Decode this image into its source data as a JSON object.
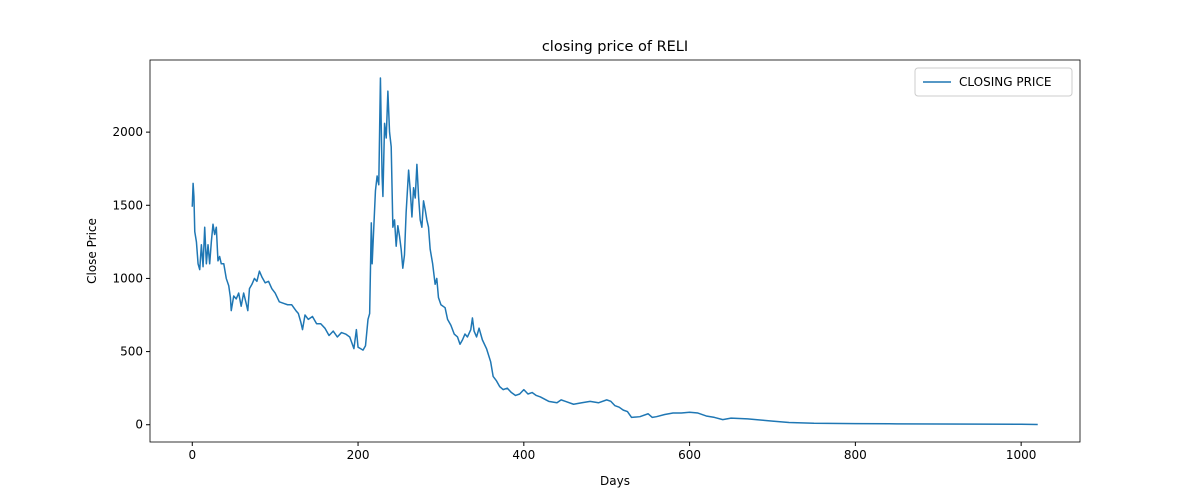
{
  "chart_data": {
    "type": "line",
    "title": "closing price of RELI",
    "x_label": "Days",
    "y_label": "Close Price",
    "x": [
      0,
      1,
      2,
      3,
      5,
      7,
      9,
      11,
      13,
      15,
      17,
      19,
      21,
      23,
      25,
      27,
      29,
      31,
      33,
      35,
      38,
      41,
      44,
      46,
      47,
      50,
      53,
      56,
      59,
      62,
      65,
      67,
      69,
      72,
      75,
      78,
      81,
      84,
      88,
      92,
      96,
      100,
      105,
      110,
      115,
      120,
      125,
      128,
      131,
      133,
      136,
      140,
      145,
      150,
      155,
      160,
      165,
      170,
      175,
      180,
      185,
      190,
      195,
      198,
      200,
      203,
      206,
      209,
      212,
      214,
      216,
      217,
      219,
      221,
      223,
      225,
      227,
      229,
      230,
      232,
      234,
      236,
      238,
      240,
      242,
      244,
      246,
      248,
      250,
      252,
      254,
      256,
      258,
      261,
      263,
      265,
      267,
      269,
      271,
      273,
      275,
      277,
      279,
      281,
      283,
      285,
      287,
      290,
      293,
      295,
      297,
      300,
      305,
      308,
      312,
      316,
      320,
      323,
      326,
      329,
      332,
      336,
      338,
      340,
      343,
      346,
      350,
      355,
      360,
      363,
      367,
      371,
      375,
      380,
      385,
      390,
      395,
      400,
      405,
      410,
      415,
      420,
      430,
      440,
      445,
      450,
      460,
      470,
      480,
      490,
      500,
      505,
      510,
      515,
      520,
      525,
      530,
      540,
      550,
      555,
      560,
      570,
      580,
      590,
      600,
      610,
      620,
      630,
      640,
      650,
      670,
      690,
      700,
      720,
      750,
      800,
      850,
      900,
      950,
      1000,
      1020
    ],
    "series": [
      {
        "name": "CLOSING PRICE",
        "color": "#1f77b4",
        "values": [
          1490,
          1650,
          1560,
          1320,
          1250,
          1100,
          1060,
          1230,
          1080,
          1350,
          1100,
          1230,
          1100,
          1250,
          1370,
          1300,
          1350,
          1120,
          1150,
          1100,
          1100,
          1000,
          950,
          870,
          780,
          880,
          860,
          900,
          810,
          900,
          830,
          780,
          930,
          960,
          1000,
          980,
          1050,
          1010,
          970,
          980,
          930,
          900,
          840,
          830,
          820,
          820,
          780,
          760,
          700,
          650,
          750,
          720,
          740,
          690,
          690,
          660,
          610,
          640,
          600,
          630,
          620,
          600,
          520,
          650,
          530,
          520,
          510,
          540,
          720,
          760,
          1380,
          1100,
          1350,
          1600,
          1700,
          1640,
          2370,
          1700,
          1560,
          2060,
          1960,
          2280,
          2000,
          1900,
          1350,
          1400,
          1220,
          1360,
          1290,
          1200,
          1070,
          1160,
          1450,
          1740,
          1600,
          1420,
          1620,
          1550,
          1780,
          1560,
          1400,
          1350,
          1530,
          1470,
          1400,
          1350,
          1200,
          1100,
          960,
          1000,
          870,
          820,
          800,
          720,
          680,
          620,
          600,
          550,
          580,
          620,
          600,
          650,
          730,
          640,
          600,
          660,
          580,
          520,
          430,
          330,
          300,
          260,
          240,
          250,
          220,
          200,
          210,
          240,
          210,
          220,
          200,
          190,
          160,
          150,
          170,
          160,
          140,
          150,
          160,
          150,
          170,
          160,
          130,
          120,
          100,
          90,
          50,
          55,
          75,
          50,
          55,
          70,
          80,
          80,
          85,
          80,
          60,
          50,
          35,
          45,
          40,
          30,
          25,
          15,
          10,
          8,
          6,
          5,
          4,
          3,
          2
        ]
      }
    ],
    "xlim": [
      -51,
      1071
    ],
    "ylim": [
      -118,
      2493
    ],
    "xticks": [
      0,
      200,
      400,
      600,
      800,
      1000
    ],
    "yticks": [
      0,
      500,
      1000,
      1500,
      2000
    ],
    "legend": "upper right"
  }
}
